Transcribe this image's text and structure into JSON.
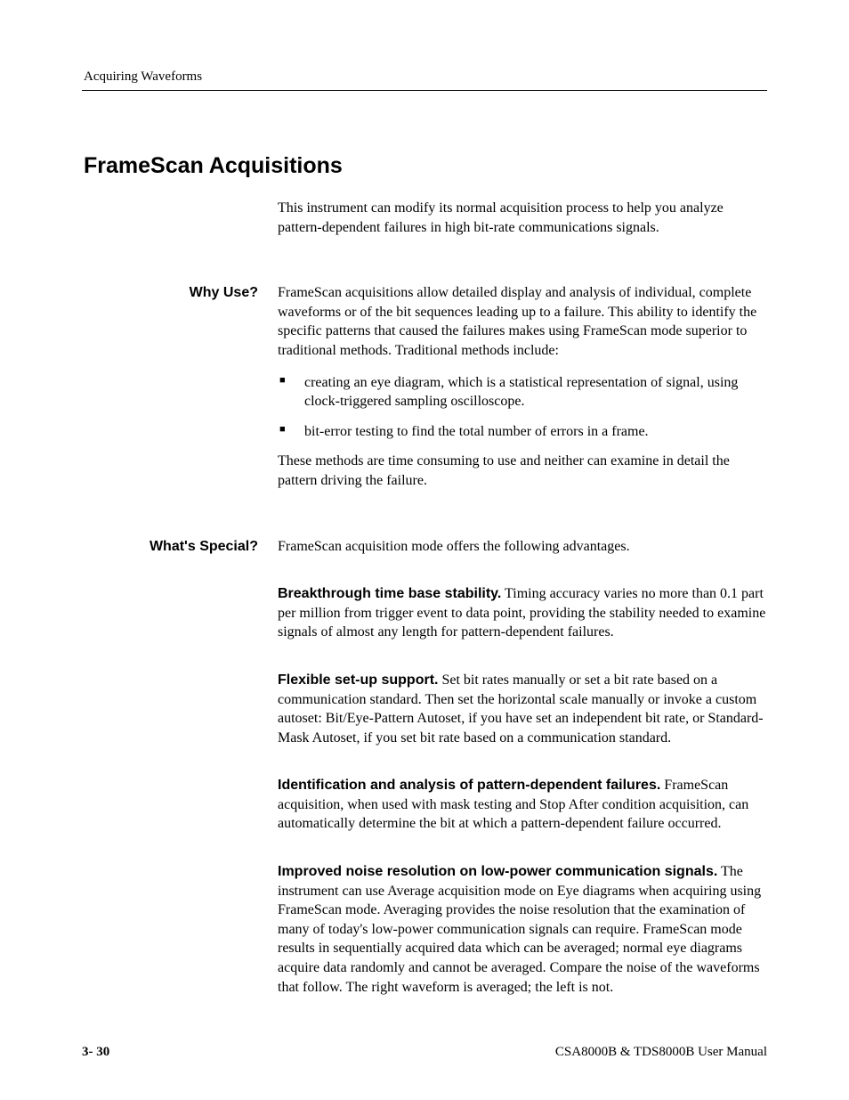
{
  "running_head": "Acquiring Waveforms",
  "section_title": "FrameScan Acquisitions",
  "intro": "This instrument can modify its normal acquisition process to help you analyze pattern-dependent failures in high bit-rate communications signals.",
  "why_use": {
    "label": "Why Use?",
    "lead": "FrameScan acquisitions allow detailed display and analysis of individual, complete waveforms or of the bit sequences leading up to a failure. This ability to identify the specific patterns that caused the failures makes using FrameScan mode superior to traditional methods. Traditional methods include:",
    "bullets": [
      "creating an eye diagram, which is a statistical representation of signal, using clock-triggered sampling oscilloscope.",
      "bit-error testing to find the total number of errors in a frame."
    ],
    "tail": "These methods are time consuming to use and neither can examine in detail the pattern driving the failure."
  },
  "whats_special": {
    "label": "What's Special?",
    "lead": "FrameScan acquisition mode offers the following advantages.",
    "items": [
      {
        "head": "Breakthrough time base stability.",
        "body": " Timing accuracy varies no more than 0.1 part per million from trigger event to data point, providing the stability needed to examine signals of almost any length for pattern-dependent failures."
      },
      {
        "head": "Flexible set-up support.",
        "body": " Set bit rates manually or set a bit rate based on a communication standard. Then set the horizontal scale manually or invoke a custom autoset: Bit/Eye-Pattern Autoset, if you have set an independent bit rate, or Standard-Mask Autoset, if you set bit rate based on a communication standard."
      },
      {
        "head": "Identification and analysis of pattern-dependent failures.",
        "body": " FrameScan acquisition, when used with mask testing and Stop After condition acquisition, can automatically determine the bit at which a pattern-dependent failure occurred."
      },
      {
        "head": "Improved noise resolution on low-power communication signals.",
        "body": " The instrument can use Average acquisition mode on Eye diagrams when acquiring using FrameScan mode. Averaging provides the noise resolution that the examination of many of today's low-power communication signals can require. FrameScan mode results in sequentially acquired data which can be averaged; normal eye diagrams acquire data randomly and cannot be averaged. Compare the noise of the waveforms that follow. The right waveform is averaged; the left is not."
      }
    ]
  },
  "footer": {
    "page": "3- 30",
    "manual": "CSA8000B & TDS8000B User Manual"
  }
}
